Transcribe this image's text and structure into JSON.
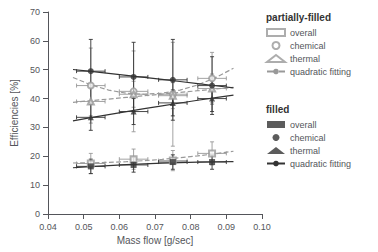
{
  "chart_data": {
    "type": "scatter",
    "xlabel": "Mass flow [g/sec]",
    "ylabel": "Efficiencies [%]",
    "xlim": [
      0.04,
      0.1
    ],
    "ylim": [
      0,
      70
    ],
    "xticks": [
      0.04,
      0.05,
      0.06,
      0.07,
      0.08,
      0.09,
      {
        "value": 0.1,
        "label": "0.10"
      }
    ],
    "yticks": [
      0,
      10,
      20,
      30,
      40,
      50,
      60,
      70
    ],
    "grid": false,
    "legend": "right",
    "series": [
      {
        "name": "quadratic fitting",
        "group": "partially-filled",
        "type": "line",
        "line_style": "dashed",
        "color": "#999999",
        "x": [
          0.047,
          0.052,
          0.057,
          0.062,
          0.067,
          0.072,
          0.077,
          0.082,
          0.087,
          0.092
        ],
        "values": [
          17.67,
          17.73,
          17.88,
          18.14,
          18.49,
          18.94,
          19.5,
          20.15,
          20.9,
          21.75
        ]
      },
      {
        "name": "quadratic fitting",
        "group": "partially-filled",
        "type": "line",
        "line_style": "dashed",
        "color": "#999999",
        "x": [
          0.047,
          0.052,
          0.057,
          0.062,
          0.067,
          0.072,
          0.077,
          0.082,
          0.087,
          0.092
        ],
        "values": [
          47.31,
          44.77,
          42.95,
          41.86,
          41.49,
          41.85,
          42.93,
          44.73,
          47.26,
          50.5
        ]
      },
      {
        "name": "quadratic fitting",
        "group": "partially-filled",
        "type": "line",
        "line_style": "dashed",
        "color": "#999999",
        "x": [
          0.047,
          0.052,
          0.057,
          0.062,
          0.067,
          0.072,
          0.077,
          0.082,
          0.087,
          0.092
        ],
        "values": [
          38.71,
          39.27,
          39.83,
          40.4,
          40.98,
          41.56,
          42.14,
          42.72,
          43.31,
          43.91
        ]
      },
      {
        "name": "quadratic fitting",
        "group": "filled",
        "type": "line",
        "line_style": "solid",
        "color": "#333333",
        "x": [
          0.047,
          0.052,
          0.057,
          0.062,
          0.067,
          0.072,
          0.077,
          0.082,
          0.087,
          0.092
        ],
        "values": [
          16.02,
          16.43,
          16.79,
          17.11,
          17.4,
          17.63,
          17.83,
          17.99,
          18.1,
          18.17
        ]
      },
      {
        "name": "quadratic fitting",
        "group": "filled",
        "type": "line",
        "line_style": "solid",
        "color": "#333333",
        "x": [
          0.047,
          0.052,
          0.057,
          0.062,
          0.067,
          0.072,
          0.077,
          0.082,
          0.087,
          0.092
        ],
        "values": [
          50.08,
          49.41,
          48.74,
          48.05,
          47.35,
          46.64,
          45.92,
          45.19,
          44.45,
          43.69
        ]
      },
      {
        "name": "quadratic fitting",
        "group": "filled",
        "type": "line",
        "line_style": "solid",
        "color": "#333333",
        "x": [
          0.047,
          0.052,
          0.057,
          0.062,
          0.067,
          0.072,
          0.077,
          0.082,
          0.087,
          0.092
        ],
        "values": [
          32.28,
          33.38,
          34.45,
          35.49,
          36.51,
          37.5,
          38.47,
          39.41,
          40.32,
          41.21
        ]
      },
      {
        "name": "overall",
        "group": "partially-filled",
        "type": "scatter",
        "marker": "open-square",
        "color": "#999999",
        "x": [
          0.052,
          0.064,
          0.075,
          0.086
        ],
        "values": [
          17.5,
          19.0,
          18.5,
          21.0
        ],
        "x_err": [
          0.004,
          0.004,
          0.004,
          0.004
        ],
        "y_err": [
          3.5,
          3.5,
          3.5,
          4.0
        ]
      },
      {
        "name": "chemical",
        "group": "partially-filled",
        "type": "scatter",
        "marker": "open-circle",
        "color": "#999999",
        "x": [
          0.052,
          0.064,
          0.075,
          0.086
        ],
        "values": [
          44.5,
          42.5,
          41.5,
          47.0
        ],
        "x_err": [
          0.004,
          0.004,
          0.004,
          0.004
        ],
        "y_err": [
          13.0,
          14.0,
          18.0,
          9.0
        ]
      },
      {
        "name": "thermal",
        "group": "partially-filled",
        "type": "scatter",
        "marker": "open-triangle",
        "color": "#999999",
        "x": [
          0.052,
          0.064,
          0.075,
          0.086
        ],
        "values": [
          39.0,
          41.5,
          41.0,
          43.5
        ],
        "x_err": [
          0.004,
          0.004,
          0.004,
          0.004
        ],
        "y_err": [
          5.0,
          4.5,
          4.5,
          5.0
        ]
      },
      {
        "name": "overall",
        "group": "filled",
        "type": "scatter",
        "marker": "square",
        "color": "#333333",
        "x": [
          0.052,
          0.064,
          0.075,
          0.086
        ],
        "values": [
          16.5,
          17.0,
          18.0,
          18.0
        ],
        "x_err": [
          0.004,
          0.004,
          0.004,
          0.004
        ],
        "y_err": [
          2.5,
          2.5,
          2.5,
          2.5
        ]
      },
      {
        "name": "chemical",
        "group": "filled",
        "type": "scatter",
        "marker": "circle",
        "color": "#333333",
        "x": [
          0.052,
          0.064,
          0.075,
          0.086
        ],
        "values": [
          49.5,
          47.5,
          46.5,
          44.5
        ],
        "x_err": [
          0.004,
          0.004,
          0.004,
          0.004
        ],
        "y_err": [
          11.0,
          12.0,
          14.0,
          10.0
        ]
      },
      {
        "name": "thermal",
        "group": "filled",
        "type": "scatter",
        "marker": "triangle",
        "color": "#333333",
        "x": [
          0.052,
          0.064,
          0.075,
          0.086
        ],
        "values": [
          33.5,
          35.5,
          38.5,
          40.0
        ],
        "x_err": [
          0.004,
          0.004,
          0.004,
          0.004
        ],
        "y_err": [
          4.5,
          4.5,
          4.5,
          4.5
        ]
      }
    ]
  }
}
